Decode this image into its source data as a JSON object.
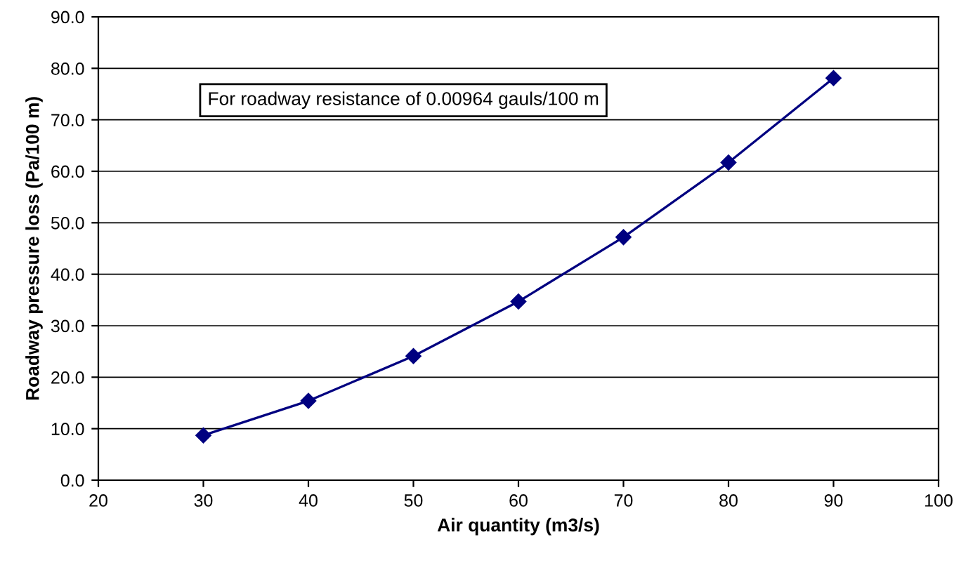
{
  "chart_data": {
    "type": "line",
    "xlabel": "Air quantity (m3/s)",
    "ylabel": "Roadway pressure loss (Pa/100 m)",
    "x": [
      30,
      40,
      50,
      60,
      70,
      80,
      90
    ],
    "series": [
      {
        "color": "#000080",
        "values": [
          8.7,
          15.4,
          24.1,
          34.7,
          47.2,
          61.7,
          78.1
        ]
      }
    ],
    "xlim": [
      20,
      100
    ],
    "xticks": [
      20,
      30,
      40,
      50,
      60,
      70,
      80,
      90,
      100
    ],
    "ylim": [
      0,
      90
    ],
    "yticks": [
      {
        "value": 0,
        "label": "0.0"
      },
      {
        "value": 10,
        "label": "10.0"
      },
      {
        "value": 20,
        "label": "20.0"
      },
      {
        "value": 30,
        "label": "30.0"
      },
      {
        "value": 40,
        "label": "40.0"
      },
      {
        "value": 50,
        "label": "50.0"
      },
      {
        "value": 60,
        "label": "60.0"
      },
      {
        "value": 70,
        "label": "70.0"
      },
      {
        "value": 80,
        "label": "80.0"
      },
      {
        "value": 90,
        "label": "90.0"
      }
    ],
    "grid": "y",
    "marker": "diamond",
    "line_style": "solid",
    "annotations": [
      "For roadway resistance of 0.00964 gauls/100 m"
    ]
  }
}
